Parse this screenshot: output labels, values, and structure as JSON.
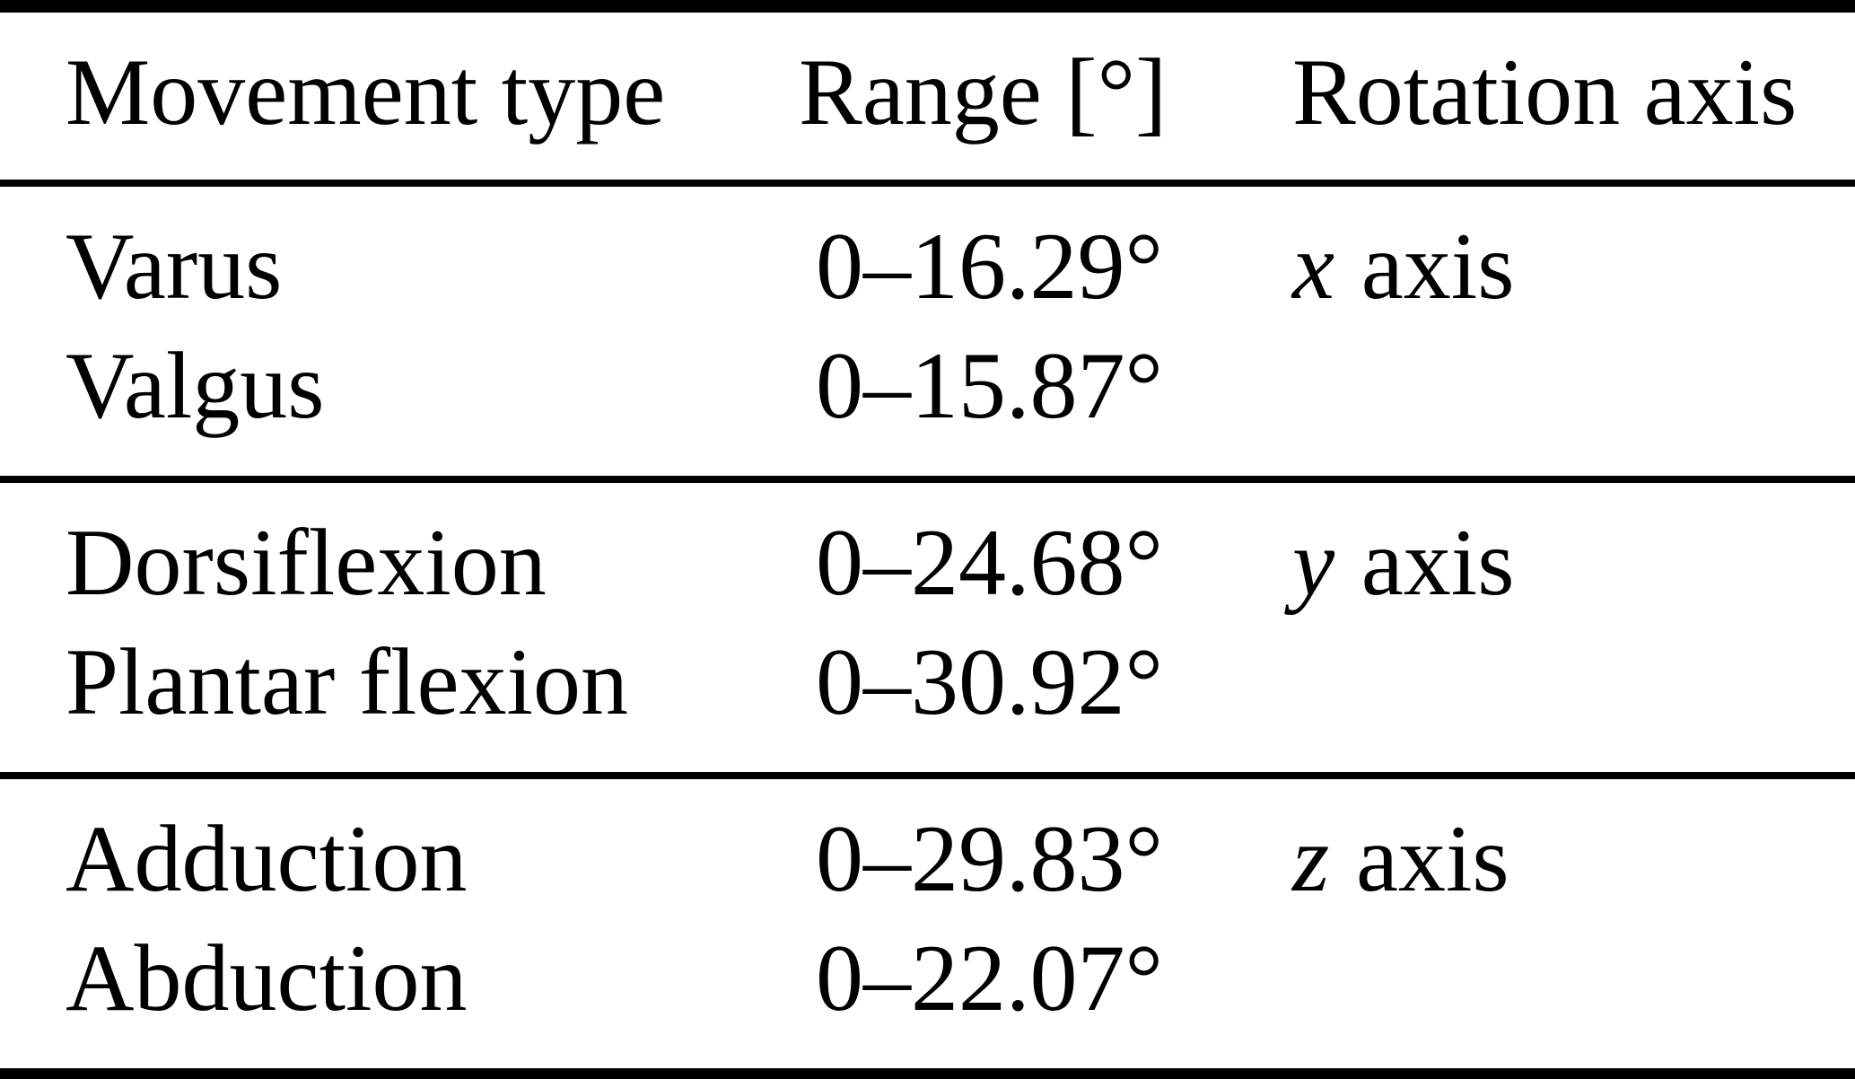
{
  "table": {
    "colors": {
      "text": "#000000",
      "background": "#ffffff",
      "rule": "#000000"
    },
    "columns": [
      "Movement type",
      "Range [°]",
      "Rotation axis"
    ],
    "sections": [
      {
        "axis": {
          "letter": "x",
          "word": "axis"
        },
        "rows": [
          {
            "movement": "Varus",
            "range": "0–16.29°"
          },
          {
            "movement": "Valgus",
            "range": "0–15.87°"
          }
        ]
      },
      {
        "axis": {
          "letter": "y",
          "word": "axis"
        },
        "rows": [
          {
            "movement": "Dorsiflexion",
            "range": "0–24.68°"
          },
          {
            "movement": "Plantar flexion",
            "range": "0–30.92°"
          }
        ]
      },
      {
        "axis": {
          "letter": "z",
          "word": "axis"
        },
        "rows": [
          {
            "movement": "Adduction",
            "range": "0–29.83°"
          },
          {
            "movement": "Abduction",
            "range": "0–22.07°"
          }
        ]
      }
    ]
  }
}
